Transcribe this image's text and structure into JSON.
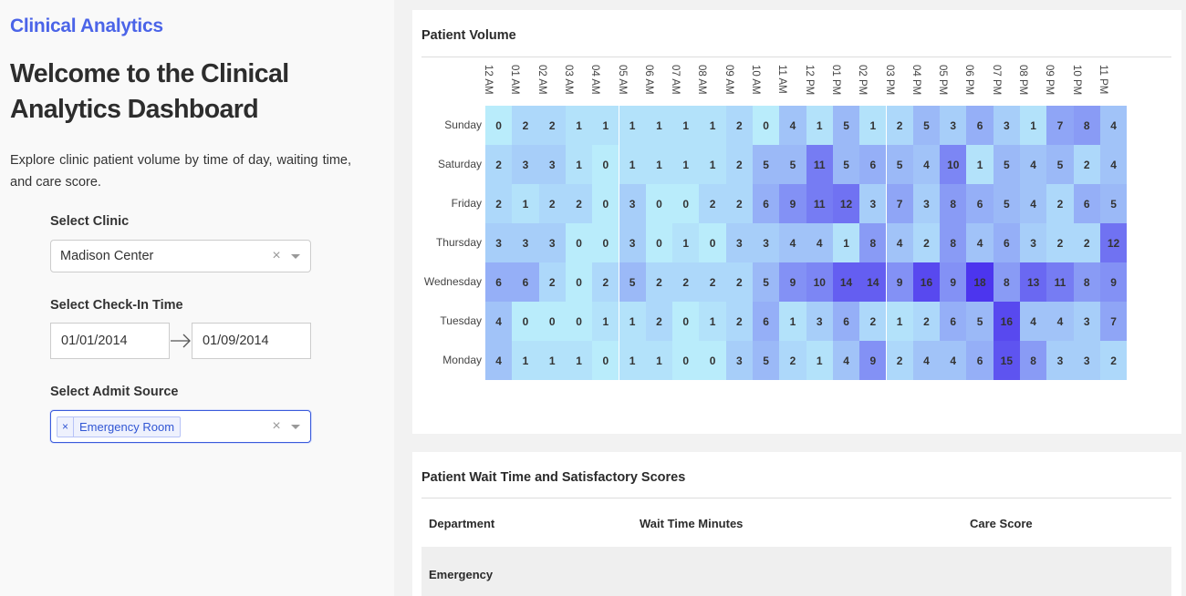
{
  "sidebar": {
    "brand": "Clinical Analytics",
    "welcome": "Welcome to the Clinical Analytics Dashboard",
    "intro": "Explore clinic patient volume by time of day, waiting time, and care score.",
    "clinic": {
      "label": "Select Clinic",
      "value": "Madison Center",
      "clear": "×"
    },
    "checkin": {
      "label": "Select Check-In Time",
      "start": "01/01/2014",
      "end": "01/09/2014"
    },
    "admit": {
      "label": "Select Admit Source",
      "chip_label": "Emergency Room",
      "chip_remove": "×",
      "clear": "×"
    }
  },
  "volume": {
    "title": "Patient Volume"
  },
  "chart_data": {
    "type": "heatmap",
    "title": "Patient Volume",
    "x": [
      "12 AM",
      "01 AM",
      "02 AM",
      "03 AM",
      "04 AM",
      "05 AM",
      "06 AM",
      "07 AM",
      "08 AM",
      "09 AM",
      "10 AM",
      "11 AM",
      "12 PM",
      "01 PM",
      "02 PM",
      "03 PM",
      "04 PM",
      "05 PM",
      "06 PM",
      "07 PM",
      "08 PM",
      "09 PM",
      "10 PM",
      "11 PM"
    ],
    "y": [
      "Sunday",
      "Saturday",
      "Friday",
      "Thursday",
      "Wednesday",
      "Tuesday",
      "Monday"
    ],
    "z": [
      [
        0,
        2,
        2,
        1,
        1,
        1,
        1,
        1,
        1,
        2,
        0,
        4,
        1,
        5,
        1,
        2,
        5,
        3,
        6,
        3,
        1,
        7,
        8,
        4
      ],
      [
        2,
        3,
        3,
        1,
        0,
        1,
        1,
        1,
        1,
        2,
        5,
        5,
        11,
        5,
        6,
        5,
        4,
        10,
        1,
        5,
        4,
        5,
        2,
        4
      ],
      [
        2,
        1,
        2,
        2,
        0,
        3,
        0,
        0,
        2,
        2,
        6,
        9,
        11,
        12,
        3,
        7,
        3,
        8,
        6,
        5,
        4,
        2,
        6,
        5
      ],
      [
        3,
        3,
        3,
        0,
        0,
        3,
        0,
        1,
        0,
        3,
        3,
        4,
        4,
        1,
        8,
        4,
        2,
        8,
        4,
        6,
        3,
        2,
        2,
        12
      ],
      [
        6,
        6,
        2,
        0,
        2,
        5,
        2,
        2,
        2,
        2,
        5,
        9,
        10,
        14,
        14,
        9,
        16,
        9,
        18,
        8,
        13,
        11,
        8,
        9
      ],
      [
        4,
        0,
        0,
        0,
        1,
        1,
        2,
        0,
        1,
        2,
        6,
        1,
        3,
        6,
        2,
        1,
        2,
        6,
        5,
        16,
        4,
        4,
        3,
        7
      ],
      [
        4,
        1,
        1,
        1,
        0,
        1,
        1,
        0,
        0,
        3,
        5,
        2,
        1,
        4,
        9,
        2,
        4,
        4,
        6,
        15,
        8,
        3,
        3,
        2
      ]
    ],
    "colorscale": [
      "#b9ecfb",
      "#4c35ee"
    ],
    "zrange": [
      0,
      18
    ]
  },
  "wait": {
    "title": "Patient Wait Time and Satisfactory Scores",
    "headers": [
      "Department",
      "Wait Time Minutes",
      "Care Score"
    ],
    "rows": [
      {
        "department": "Emergency"
      }
    ]
  }
}
